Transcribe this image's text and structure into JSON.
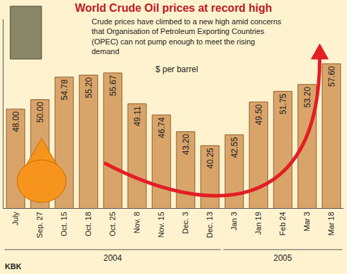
{
  "chart_data": {
    "type": "bar",
    "title": "World Crude Oil prices at record high",
    "subtitle": [
      "Crude prices have climbed to a new high amid concerns",
      "that Organisation of Petroleum Exporting Countries",
      "(OPEC) can not pump enough to meet the rising",
      "demand"
    ],
    "ylabel": "$ per barrel",
    "source": "KBK",
    "categories": [
      "July",
      "Sep. 27",
      "Oct. 15",
      "Oct. 18",
      "Oct. 25",
      "Nov. 8",
      "Nov. 15",
      "Dec. 3",
      "Dec. 13",
      "Jan 3",
      "Jan 19",
      "Feb 24",
      "Mar 3",
      "Mar 18"
    ],
    "values": [
      48.0,
      50.0,
      54.78,
      55.2,
      55.67,
      49.11,
      46.74,
      43.2,
      40.25,
      42.55,
      49.5,
      51.75,
      53.2,
      57.6
    ],
    "value_labels": [
      "48.00",
      "50.00",
      "54.78",
      "55.20",
      "55.67",
      "49.11",
      "46.74",
      "43.20",
      "40.25",
      "42.55",
      "49.50",
      "51.75",
      "53.20",
      "57.60"
    ],
    "x_groups": [
      {
        "label": "2004",
        "from": "July",
        "to": "Dec. 13"
      },
      {
        "label": "2005",
        "from": "Jan 3",
        "to": "Mar 18"
      }
    ],
    "color": "#D9A46A",
    "ylim": [
      27,
      67
    ],
    "grid": false,
    "data_labels": true,
    "tick_labels": "x"
  }
}
